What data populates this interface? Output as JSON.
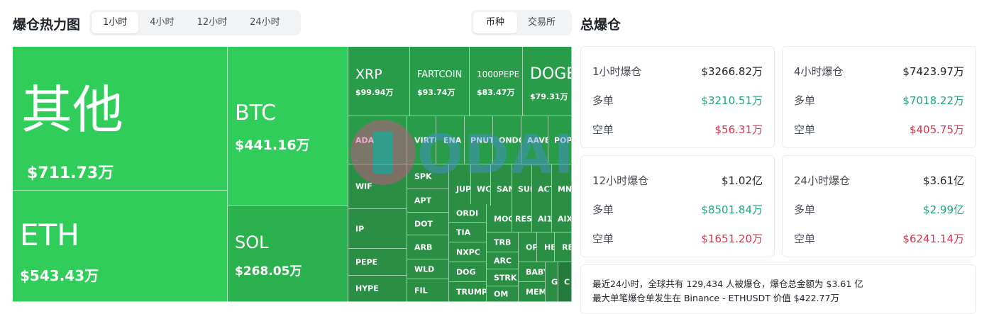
{
  "heatmap": {
    "title": "爆仓热力图",
    "time_tabs": [
      "1小时",
      "4小时",
      "12小时",
      "24小时"
    ],
    "active_time_tab": 0,
    "group_tabs": [
      "币种",
      "交易所"
    ],
    "active_group_tab": 0,
    "cells": {
      "other": {
        "label": "其他",
        "value": "$711.73万"
      },
      "btc": {
        "label": "BTC",
        "value": "$441.16万"
      },
      "eth": {
        "label": "ETH",
        "value": "$543.43万"
      },
      "sol": {
        "label": "SOL",
        "value": "$268.05万"
      },
      "xrp": {
        "label": "XRP",
        "value": "$99.94万"
      },
      "fartcoin": {
        "label": "FARTCOIN",
        "value": "$93.74万"
      },
      "pepe1000": {
        "label": "1000PEPE",
        "value": "$83.47万"
      },
      "doge": {
        "label": "DOGE",
        "value": "$79.31万"
      }
    },
    "small_cells": [
      "ADA",
      "VIRTU",
      "ENA",
      "PNUT",
      "ONDO",
      "AAVE",
      "POP",
      "WIF",
      "SPK",
      "JUP",
      "WC",
      "SAN",
      "SUI",
      "ACT",
      "MN",
      "APT",
      "ORDI",
      "MOO",
      "RES",
      "AI1",
      "AIX",
      "IP",
      "DOT",
      "TIA",
      "TRB",
      "OP",
      "HE",
      "RE",
      "ARB",
      "NXPC",
      "ARC",
      "PEPE",
      "WLD",
      "DOG",
      "STRK",
      "BABY",
      "G",
      "C",
      "HYPE",
      "FIL",
      "TRUMP",
      "OM",
      "MEM"
    ]
  },
  "summary": {
    "title": "总爆仓",
    "cards": [
      {
        "label": "1小时爆仓",
        "total": "$3266.82万",
        "long_label": "多单",
        "long": "$3210.51万",
        "short_label": "空单",
        "short": "$56.31万"
      },
      {
        "label": "4小时爆仓",
        "total": "$7423.97万",
        "long_label": "多单",
        "long": "$7018.22万",
        "short_label": "空单",
        "short": "$405.75万"
      },
      {
        "label": "12小时爆仓",
        "total": "$1.02亿",
        "long_label": "多单",
        "long": "$8501.84万",
        "short_label": "空单",
        "short": "$1651.20万"
      },
      {
        "label": "24小时爆仓",
        "total": "$3.61亿",
        "long_label": "多单",
        "long": "$2.99亿",
        "short_label": "空单",
        "short": "$6241.14万"
      }
    ],
    "info_line1": "最近24小时，全球共有 129,434 人被爆仓，爆仓总金额为 $3.61 亿",
    "info_line2": "最大单笔爆仓单发生在 Binance - ETHUSDT 价值 $422.77万"
  },
  "watermark": {
    "text": "ODAILY"
  },
  "colors": {
    "green_cell": "#30cd5a",
    "long": "#1fa67a",
    "short": "#e0314b"
  }
}
